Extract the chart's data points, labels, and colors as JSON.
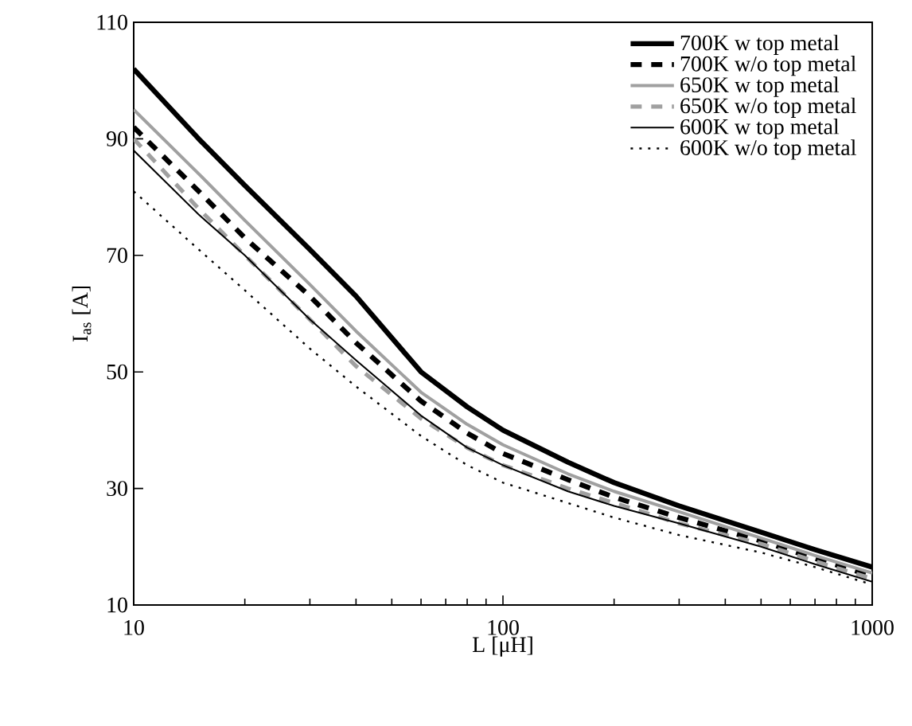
{
  "chart_data": {
    "type": "line",
    "xlabel": "L [μH]",
    "ylabel": "I$_{as}$ [A]",
    "log": "x",
    "x": [
      10,
      15,
      20,
      30,
      40,
      60,
      80,
      100,
      150,
      200,
      300,
      500,
      700,
      1000
    ],
    "xlim": [
      10,
      1000
    ],
    "xticks": [
      10,
      100,
      1000
    ],
    "ylim": [
      10,
      110
    ],
    "yticks": [
      10,
      30,
      50,
      70,
      90,
      110
    ],
    "grid": false,
    "legend": "top right",
    "marker": "none",
    "series": [
      {
        "name": "700K w top metal",
        "color": "#000000",
        "line_style": "solid",
        "values": [
          102,
          90,
          82,
          71,
          63,
          50,
          44,
          40,
          34.5,
          31,
          27,
          22.5,
          19.5,
          16.5
        ]
      },
      {
        "name": "700K w/o top metal",
        "color": "#000000",
        "line_style": "dashed",
        "values": [
          92,
          81,
          73,
          63,
          55,
          45,
          39.5,
          36,
          31.5,
          28.5,
          25,
          21,
          18,
          15
        ]
      },
      {
        "name": "650K w top metal",
        "color": "#a0a0a0",
        "line_style": "solid",
        "values": [
          95,
          84,
          76,
          65,
          57,
          46.5,
          41,
          37.5,
          32.5,
          29.5,
          26,
          21.5,
          18.5,
          15.5
        ]
      },
      {
        "name": "650K w/o top metal",
        "color": "#a0a0a0",
        "line_style": "dashed",
        "values": [
          90,
          78,
          70,
          59,
          51,
          42,
          37,
          34,
          30,
          27.5,
          24,
          20.5,
          17.5,
          14.5
        ]
      },
      {
        "name": "600K w top metal",
        "color": "#000000",
        "line_style": "solid",
        "values": [
          88,
          77,
          70,
          59,
          52,
          42.5,
          37,
          34,
          29.5,
          27,
          24,
          20,
          17,
          14
        ]
      },
      {
        "name": "600K w/o top metal",
        "color": "#000000",
        "line_style": "dotted",
        "values": [
          81,
          71,
          64,
          54,
          47.5,
          39,
          34,
          31,
          27.5,
          25,
          22,
          19,
          16.5,
          13.5
        ]
      }
    ]
  }
}
